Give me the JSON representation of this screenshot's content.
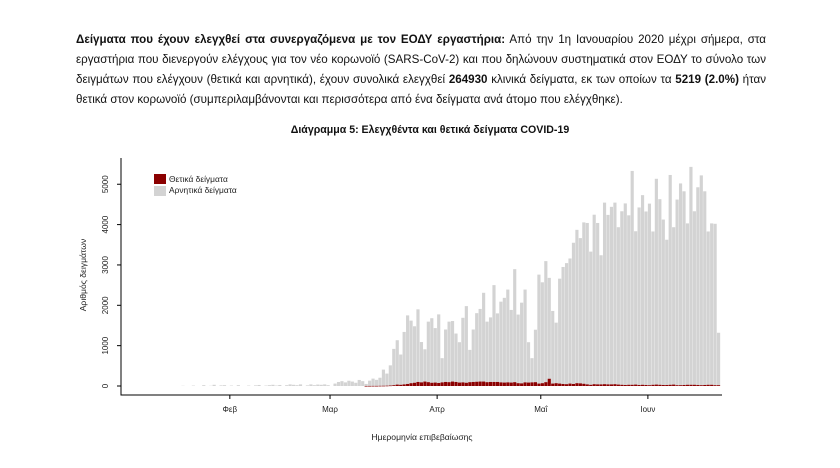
{
  "intro": {
    "title": "Δείγματα που έχουν ελεγχθεί στα συνεργαζόμενα με τον ΕΟΔΥ εργαστήρια:",
    "text_1": " Από την 1η Ιανουαρίου 2020 μέχρι σήμερα, στα εργαστήρια που διενεργούν ελέγχους για τον νέο κορωνοϊό (SARS-CoV-2) και που δηλώνουν συστηματικά στον ΕΟΔΥ το σύνολο των δειγμάτων που ελέγχουν (θετικά και αρνητικά), έχουν συνολικά ελεγχθεί ",
    "total_samples": "264930",
    "text_2": " κλινικά δείγματα, εκ των οποίων τα ",
    "positive_samples": "5219",
    "positive_pct": "(2.0%)",
    "text_3": " ήταν θετικά στον κορωνοϊό (συμπεριλαμβάνονται και περισσότερα από ένα δείγματα ανά άτομο που ελέγχθηκε)."
  },
  "chart_data": {
    "type": "bar",
    "stacked": true,
    "title": "Διάγραμμα 5: Ελεγχθέντα και θετικά δείγματα COVID-19",
    "xlabel": "Ημερομηνία επιβεβαίωσης",
    "ylabel": "Αριθμός δειγμάτων",
    "ylim": [
      0,
      5700
    ],
    "yticks": [
      "0",
      "1000",
      "2000",
      "3000",
      "4000",
      "5000"
    ],
    "xticks": [
      {
        "label": "Φεβ",
        "date": "2020-02-01"
      },
      {
        "label": "Μαρ",
        "date": "2020-03-01"
      },
      {
        "label": "Απρ",
        "date": "2020-04-01"
      },
      {
        "label": "Μαΐ",
        "date": "2020-05-01"
      },
      {
        "label": "Ιουν",
        "date": "2020-06-01"
      }
    ],
    "x_start": "2020-01-06",
    "legend_position": "top-left",
    "colors": {
      "positive": "#8b0000",
      "negative": "#d3d3d3",
      "axis": "#000000"
    },
    "series": [
      {
        "name": "Θετικά δείγματα",
        "values": [
          0,
          0,
          0,
          0,
          0,
          0,
          0,
          0,
          0,
          0,
          0,
          0,
          0,
          0,
          0,
          0,
          0,
          0,
          0,
          0,
          0,
          0,
          0,
          0,
          0,
          0,
          0,
          0,
          0,
          0,
          0,
          0,
          0,
          0,
          0,
          0,
          0,
          0,
          0,
          0,
          0,
          0,
          0,
          0,
          0,
          0,
          0,
          0,
          0,
          0,
          0,
          0,
          0,
          0,
          0,
          0,
          0,
          0,
          0,
          0,
          0,
          0,
          0,
          0,
          0,
          1,
          2,
          3,
          3,
          5,
          6,
          8,
          12,
          20,
          35,
          30,
          40,
          50,
          70,
          80,
          100,
          90,
          110,
          95,
          80,
          85,
          75,
          90,
          100,
          95,
          110,
          100,
          85,
          90,
          80,
          95,
          100,
          105,
          110,
          110,
          95,
          100,
          100,
          100,
          90,
          85,
          90,
          85,
          95,
          70,
          65,
          90,
          85,
          90,
          95,
          60,
          70,
          95,
          180,
          60,
          70,
          60,
          50,
          45,
          60,
          50,
          70,
          65,
          55,
          40,
          30,
          45,
          40,
          40,
          45,
          40,
          40,
          45,
          35,
          30,
          25,
          30,
          30,
          35,
          25,
          30,
          25,
          20,
          30,
          35,
          30,
          25,
          25,
          30,
          35,
          20,
          20,
          25,
          30,
          30,
          30,
          25,
          20,
          25,
          30,
          30,
          20,
          20
        ]
      },
      {
        "name": "Αρνητικά δείγματα",
        "values": [
          0,
          0,
          0,
          0,
          0,
          0,
          0,
          0,
          0,
          0,
          0,
          0,
          5,
          0,
          0,
          10,
          0,
          0,
          20,
          0,
          5,
          30,
          0,
          15,
          20,
          0,
          10,
          0,
          20,
          0,
          0,
          10,
          0,
          15,
          25,
          0,
          10,
          20,
          30,
          10,
          25,
          0,
          20,
          40,
          30,
          20,
          40,
          0,
          15,
          40,
          20,
          35,
          30,
          40,
          20,
          0,
          60,
          100,
          120,
          90,
          130,
          110,
          80,
          150,
          120,
          50,
          130,
          180,
          150,
          200,
          400,
          300,
          500,
          900,
          1100,
          750,
          1300,
          1700,
          1550,
          1400,
          1800,
          1000,
          800,
          1500,
          1600,
          1350,
          1700,
          600,
          1300,
          1500,
          1500,
          1200,
          1000,
          1600,
          1900,
          800,
          1300,
          1700,
          1800,
          2200,
          1500,
          1600,
          2400,
          1700,
          2000,
          2100,
          2300,
          1800,
          2800,
          1700,
          2000,
          2300,
          1000,
          600,
          1300,
          2700,
          2500,
          3000,
          2500,
          1800,
          1500,
          2600,
          2900,
          3000,
          3100,
          3500,
          3800,
          3600,
          4000,
          4000,
          3300,
          4200,
          4000,
          3200,
          4500,
          4200,
          4400,
          4500,
          3900,
          4300,
          4500,
          4200,
          5300,
          3800,
          4400,
          4700,
          4300,
          4500,
          3800,
          5100,
          4600,
          4100,
          3600,
          5200,
          3900,
          4600,
          5000,
          4800,
          4000,
          5400,
          4300,
          4900,
          5200,
          4800,
          3800,
          4000,
          4000,
          1300
        ]
      }
    ]
  }
}
